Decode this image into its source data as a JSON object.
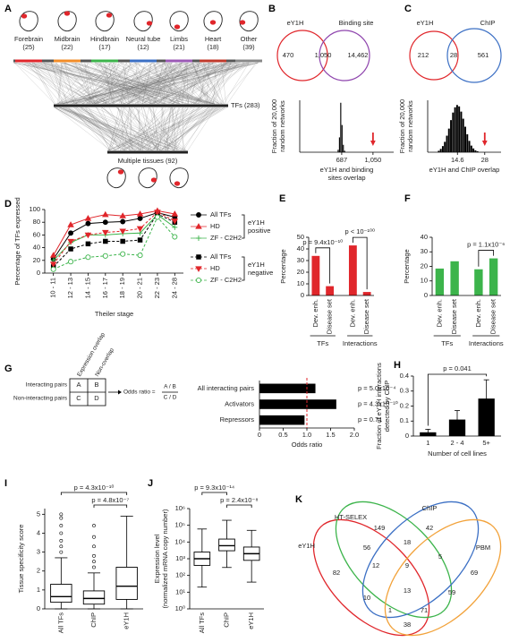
{
  "panel_labels": [
    "A",
    "B",
    "C",
    "D",
    "E",
    "F",
    "G",
    "H",
    "I",
    "J",
    "K"
  ],
  "panel_a": {
    "tissues": [
      {
        "name": "Forebrain",
        "count": "(25)"
      },
      {
        "name": "Midbrain",
        "count": "(22)"
      },
      {
        "name": "Hindbrain",
        "count": "(17)"
      },
      {
        "name": "Neural tube",
        "count": "(12)"
      },
      {
        "name": "Limbs",
        "count": "(21)"
      },
      {
        "name": "Heart",
        "count": "(18)"
      },
      {
        "name": "Other",
        "count": "(39)"
      }
    ],
    "tfs": "TFs (283)",
    "multiple": "Multiple tissues (92)"
  },
  "venn_b": {
    "sets": [
      "eY1H",
      "Binding site"
    ],
    "regions": [
      "470",
      "1,050",
      "14,462"
    ]
  },
  "venn_c": {
    "sets": [
      "eY1H",
      "ChIP"
    ],
    "regions": [
      "212",
      "28",
      "561"
    ]
  },
  "panel_g": {
    "columns": [
      "Expression overlap",
      "Non-overlap"
    ],
    "rows": [
      "Interacting pairs",
      "Non-interacting pairs"
    ],
    "cells": [
      "A",
      "B",
      "C",
      "D"
    ],
    "formula": "Odds ratio =",
    "numerator": "A / B",
    "denominator": "C / D"
  },
  "venn_k": {
    "sets": [
      "HT-SELEX",
      "ChIP",
      "eY1H",
      "PBM"
    ],
    "regions": [
      "149",
      "42",
      "18",
      "56",
      "82",
      "12",
      "9",
      "5",
      "69",
      "13",
      "10",
      "59",
      "1",
      "71",
      "38"
    ]
  },
  "chart_data": [
    {
      "type": "histogram",
      "ylabel": [
        "Fraction of 20,000",
        "random networks"
      ],
      "xlabel": [
        "eY1H and binding",
        "sites overlap"
      ],
      "bins": [
        640,
        655,
        670,
        685,
        700,
        715,
        730
      ],
      "values": [
        0.05,
        0.3,
        1,
        0.55,
        0.15,
        0.03
      ],
      "color": "#000000",
      "xlim": [
        200,
        1290
      ],
      "ylim": [
        0,
        1.05
      ],
      "xticks": [
        687,
        {
          "value": 1050,
          "label": "1,050"
        }
      ],
      "marker": 1050,
      "marker_color": "#e0262b"
    },
    {
      "type": "histogram",
      "ylabel": [
        "Fraction of 20,000",
        "random networks"
      ],
      "xlabel": [
        "eY1H and ChIP overlap"
      ],
      "bins": [
        5,
        6,
        7,
        8,
        9,
        10,
        11,
        12,
        13,
        14,
        15,
        16,
        17,
        18,
        19,
        20,
        21,
        22,
        23,
        24,
        25
      ],
      "values": [
        0.03,
        0.07,
        0.13,
        0.22,
        0.35,
        0.5,
        0.68,
        0.84,
        0.95,
        1,
        0.97,
        0.86,
        0.71,
        0.54,
        0.38,
        0.24,
        0.14,
        0.08,
        0.04,
        0.02
      ],
      "color": "#000000",
      "xlim": [
        0,
        36
      ],
      "ylim": [
        0,
        1.1
      ],
      "xticks": [
        14.6,
        28
      ],
      "marker": 28,
      "marker_color": "#e0262b"
    },
    {
      "type": "line",
      "ylabel": "Percentage of TFs expressed",
      "xlabel": "Theiler stage",
      "categories": [
        "10 - 11",
        "12 - 13",
        "14 - 15",
        "16 - 17",
        "18 - 19",
        "20 - 21",
        "22 - 23",
        "24 - 28"
      ],
      "ylim": [
        0,
        100
      ],
      "yticks": [
        0,
        20,
        40,
        60,
        80,
        100
      ],
      "series": [
        {
          "name": "All TFs",
          "color": "#000000",
          "style": "solid",
          "marker": "circle",
          "values": [
            22,
            63,
            78,
            80,
            81,
            86,
            95,
            88
          ]
        },
        {
          "name": "HD",
          "color": "#e0262b",
          "style": "solid",
          "marker": "triangle",
          "values": [
            28,
            76,
            86,
            92,
            90,
            93,
            98,
            93
          ]
        },
        {
          "name": "ZF - C2H2",
          "color": "#3cb44b",
          "style": "solid",
          "marker": "plus",
          "values": [
            20,
            48,
            60,
            60,
            62,
            63,
            92,
            72
          ]
        },
        {
          "name": "All TFs",
          "color": "#000000",
          "style": "dashed",
          "marker": "square",
          "values": [
            10,
            38,
            46,
            50,
            50,
            52,
            93,
            80
          ]
        },
        {
          "name": "HD",
          "color": "#e0262b",
          "style": "dashed",
          "marker": "triangle-down",
          "values": [
            14,
            50,
            60,
            64,
            66,
            70,
            96,
            82
          ]
        },
        {
          "name": "ZF - C2H2",
          "color": "#3cb44b",
          "style": "dashed",
          "marker": "circle-open",
          "values": [
            6,
            18,
            25,
            27,
            30,
            28,
            88,
            57
          ]
        }
      ],
      "legend_groups": [
        [
          "eY1H",
          "positive"
        ],
        [
          "eY1H",
          "negative"
        ]
      ]
    },
    {
      "type": "bar",
      "ylabel": "Percentage",
      "categories": [
        "Dev. enh.",
        "Disease set",
        "Dev. enh.",
        "Disease set"
      ],
      "groups": [
        "TFs",
        "Interactions"
      ],
      "values": [
        34,
        8,
        43,
        3
      ],
      "color": "#e0262b",
      "ylim": [
        0,
        50
      ],
      "yticks": [
        0,
        10,
        20,
        30,
        40,
        50
      ],
      "annotations": [
        "p = 9.4x10⁻¹⁰",
        "p < 10⁻¹⁰⁰"
      ]
    },
    {
      "type": "bar",
      "ylabel": "Percentage",
      "categories": [
        "Dev. enh.",
        "Disease set",
        "Dev. enh.",
        "Disease set"
      ],
      "groups": [
        "TFs",
        "Interactions"
      ],
      "values": [
        18.5,
        23.5,
        18,
        25.5
      ],
      "color": "#3cb44b",
      "ylim": [
        0,
        40
      ],
      "yticks": [
        0,
        10,
        20,
        30,
        40
      ],
      "annotations": [
        null,
        "p = 1.1x10⁻⁶"
      ]
    },
    {
      "type": "barh",
      "xlabel": "Odds ratio",
      "categories": [
        "All interacting pairs",
        "Activators",
        "Repressors"
      ],
      "values": [
        1.18,
        1.62,
        0.95
      ],
      "color": "#000000",
      "xlim": [
        0,
        2
      ],
      "xticks": [
        0,
        0.5,
        {
          "value": 1,
          "label": "1.0"
        },
        1.5,
        {
          "value": 2,
          "label": "2.0"
        }
      ],
      "refline": 1,
      "refline_color": "#e0262b",
      "annotations": [
        "p = 5.0x10⁻⁴",
        "p = 4.3x10⁻¹⁰",
        "p = 0.71"
      ]
    },
    {
      "type": "bar",
      "ylabel": [
        "Fraction of eY1H interactions",
        "detected by ChIP"
      ],
      "xlabel": "Number of cell lines",
      "categories": [
        "1",
        "2 - 4",
        "5+"
      ],
      "values": [
        0.025,
        0.11,
        0.25
      ],
      "errors": [
        0.02,
        0.06,
        0.125
      ],
      "color": "#000000",
      "ylim": [
        0,
        0.4
      ],
      "yticks": [
        0,
        0.1,
        0.2,
        0.3,
        0.4
      ],
      "annotation": "p = 0.041"
    },
    {
      "type": "box",
      "ylabel": "Tissue specificity score",
      "categories": [
        "All TFs",
        "ChIP",
        "eY1H"
      ],
      "ylim": [
        0,
        5.3
      ],
      "yticks": [
        0,
        1,
        2,
        3,
        4,
        5
      ],
      "boxes": [
        {
          "whisker_low": 0,
          "q1": 0.35,
          "median": 0.65,
          "q3": 1.3,
          "whisker_high": 2.7,
          "outliers": [
            3,
            3.3,
            3.6,
            4,
            4.4,
            4.8,
            5
          ]
        },
        {
          "whisker_low": 0,
          "q1": 0.25,
          "median": 0.55,
          "q3": 0.95,
          "whisker_high": 1.9,
          "outliers": [
            2.2,
            2.5,
            2.8,
            3.3,
            3.8,
            4.4
          ]
        },
        {
          "whisker_low": 0,
          "q1": 0.5,
          "median": 1.2,
          "q3": 2.2,
          "whisker_high": 4.9,
          "outliers": []
        }
      ],
      "annotations": [
        "p = 4.3x10⁻¹⁰",
        "p = 4.8x10⁻⁷"
      ]
    },
    {
      "type": "box",
      "log": true,
      "ylabel": [
        "Expression level",
        "(normalized mRNA copy number)"
      ],
      "categories": [
        "All TFs",
        "ChIP",
        "eY1H"
      ],
      "ylim": [
        1,
        1000000
      ],
      "yticks": [
        {
          "value": 1,
          "label": "10⁰"
        },
        {
          "value": 10,
          "label": "10¹"
        },
        {
          "value": 100,
          "label": "10²"
        },
        {
          "value": 1000,
          "label": "10³"
        },
        {
          "value": 10000,
          "label": "10⁴"
        },
        {
          "value": 100000,
          "label": "10⁵"
        },
        {
          "value": 1000000,
          "label": "10⁶"
        }
      ],
      "boxes": [
        {
          "whisker_low": 20,
          "q1": 400,
          "median": 1000,
          "q3": 2500,
          "whisker_high": 60000,
          "outliers": []
        },
        {
          "whisker_low": 300,
          "q1": 3000,
          "median": 6000,
          "q3": 15000,
          "whisker_high": 200000,
          "outliers": []
        },
        {
          "whisker_low": 40,
          "q1": 800,
          "median": 2000,
          "q3": 5000,
          "whisker_high": 50000,
          "outliers": []
        }
      ],
      "annotations": [
        "p = 9.3x10⁻¹⁴",
        "p = 2.4x10⁻⁸"
      ]
    }
  ]
}
